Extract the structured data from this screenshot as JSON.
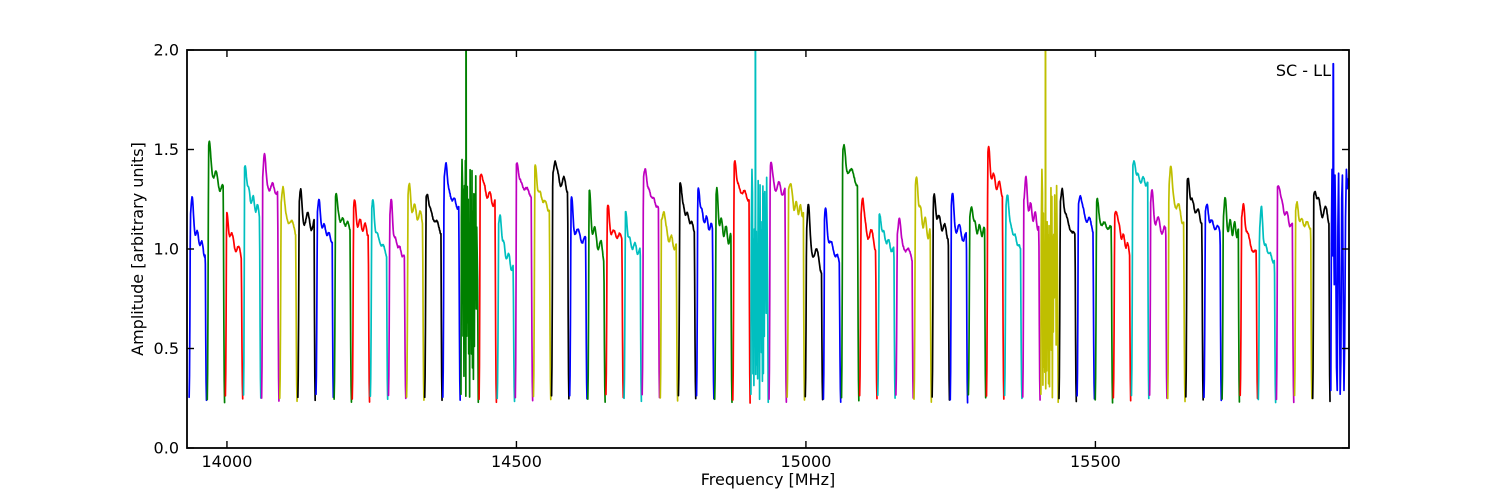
{
  "chart_data": {
    "type": "line",
    "title": "",
    "annotation": "SC - LL",
    "xlabel": "Frequency [MHz]",
    "ylabel": "Amplitude [arbitrary units]",
    "xlim": [
      13931,
      15938
    ],
    "ylim": [
      0.0,
      2.0
    ],
    "xticks": [
      14000,
      14500,
      15000,
      15500
    ],
    "xtick_labels": [
      "14000",
      "14500",
      "15000",
      "15500"
    ],
    "yticks": [
      0.0,
      0.5,
      1.0,
      1.5,
      2.0
    ],
    "ytick_labels": [
      "0.0",
      "0.5",
      "1.0",
      "1.5",
      "2.0"
    ],
    "grid": false,
    "legend": "none",
    "background": "#ffffff",
    "axis_color": "#000000",
    "color_cycle": {
      "b": "#0000ff",
      "g": "#008000",
      "r": "#ff0000",
      "c": "#00bfbf",
      "m": "#bf00bf",
      "y": "#bfbf00",
      "k": "#000000"
    },
    "baseline_amplitude": 0.24,
    "subband_width_mhz": 31.3,
    "n_subbands": 64,
    "subbands": [
      {
        "f0": 13934.0,
        "color": "b",
        "peak": 1.27,
        "flagged": false
      },
      {
        "f0": 13965.3,
        "color": "g",
        "peak": 1.52,
        "flagged": false
      },
      {
        "f0": 13996.6,
        "color": "r",
        "peak": 1.19,
        "flagged": false
      },
      {
        "f0": 14027.9,
        "color": "c",
        "peak": 1.43,
        "flagged": false
      },
      {
        "f0": 14059.2,
        "color": "m",
        "peak": 1.48,
        "flagged": false
      },
      {
        "f0": 14090.5,
        "color": "y",
        "peak": 1.31,
        "flagged": false
      },
      {
        "f0": 14121.8,
        "color": "k",
        "peak": 1.27,
        "flagged": false
      },
      {
        "f0": 14153.1,
        "color": "b",
        "peak": 1.25,
        "flagged": false
      },
      {
        "f0": 14184.4,
        "color": "g",
        "peak": 1.29,
        "flagged": false
      },
      {
        "f0": 14215.7,
        "color": "r",
        "peak": 1.23,
        "flagged": false
      },
      {
        "f0": 14247.0,
        "color": "c",
        "peak": 1.26,
        "flagged": false
      },
      {
        "f0": 14278.3,
        "color": "m",
        "peak": 1.26,
        "flagged": false
      },
      {
        "f0": 14309.6,
        "color": "y",
        "peak": 1.31,
        "flagged": false
      },
      {
        "f0": 14340.9,
        "color": "k",
        "peak": 1.3,
        "flagged": false
      },
      {
        "f0": 14372.2,
        "color": "b",
        "peak": 1.46,
        "flagged": false
      },
      {
        "f0": 14403.5,
        "color": "g",
        "peak": 1.45,
        "flagged": true
      },
      {
        "f0": 14434.8,
        "color": "r",
        "peak": 1.41,
        "flagged": false
      },
      {
        "f0": 14466.1,
        "color": "c",
        "peak": 1.2,
        "flagged": false
      },
      {
        "f0": 14497.4,
        "color": "m",
        "peak": 1.45,
        "flagged": false
      },
      {
        "f0": 14528.7,
        "color": "y",
        "peak": 1.42,
        "flagged": false
      },
      {
        "f0": 14560.0,
        "color": "k",
        "peak": 1.47,
        "flagged": false
      },
      {
        "f0": 14591.3,
        "color": "b",
        "peak": 1.25,
        "flagged": false
      },
      {
        "f0": 14622.6,
        "color": "g",
        "peak": 1.28,
        "flagged": false
      },
      {
        "f0": 14653.9,
        "color": "r",
        "peak": 1.21,
        "flagged": false
      },
      {
        "f0": 14685.2,
        "color": "c",
        "peak": 1.2,
        "flagged": false
      },
      {
        "f0": 14716.5,
        "color": "m",
        "peak": 1.42,
        "flagged": false
      },
      {
        "f0": 14747.8,
        "color": "y",
        "peak": 1.23,
        "flagged": false
      },
      {
        "f0": 14779.1,
        "color": "k",
        "peak": 1.35,
        "flagged": false
      },
      {
        "f0": 14810.4,
        "color": "b",
        "peak": 1.32,
        "flagged": false
      },
      {
        "f0": 14841.7,
        "color": "g",
        "peak": 1.28,
        "flagged": false
      },
      {
        "f0": 14873.0,
        "color": "r",
        "peak": 1.46,
        "flagged": false
      },
      {
        "f0": 14904.3,
        "color": "c",
        "peak": 1.4,
        "flagged": true
      },
      {
        "f0": 14935.6,
        "color": "m",
        "peak": 1.43,
        "flagged": false
      },
      {
        "f0": 14966.9,
        "color": "y",
        "peak": 1.36,
        "flagged": false
      },
      {
        "f0": 14998.2,
        "color": "k",
        "peak": 1.21,
        "flagged": false
      },
      {
        "f0": 15029.5,
        "color": "b",
        "peak": 1.2,
        "flagged": false
      },
      {
        "f0": 15060.8,
        "color": "g",
        "peak": 1.52,
        "flagged": false
      },
      {
        "f0": 15092.1,
        "color": "r",
        "peak": 1.27,
        "flagged": false
      },
      {
        "f0": 15123.4,
        "color": "c",
        "peak": 1.18,
        "flagged": false
      },
      {
        "f0": 15154.7,
        "color": "m",
        "peak": 1.16,
        "flagged": false
      },
      {
        "f0": 15186.0,
        "color": "y",
        "peak": 1.38,
        "flagged": false
      },
      {
        "f0": 15217.3,
        "color": "k",
        "peak": 1.27,
        "flagged": false
      },
      {
        "f0": 15248.6,
        "color": "b",
        "peak": 1.26,
        "flagged": false
      },
      {
        "f0": 15279.9,
        "color": "g",
        "peak": 1.23,
        "flagged": false
      },
      {
        "f0": 15311.2,
        "color": "r",
        "peak": 1.5,
        "flagged": false
      },
      {
        "f0": 15342.5,
        "color": "c",
        "peak": 1.3,
        "flagged": false
      },
      {
        "f0": 15373.8,
        "color": "m",
        "peak": 1.35,
        "flagged": false
      },
      {
        "f0": 15405.1,
        "color": "y",
        "peak": 1.4,
        "flagged": true
      },
      {
        "f0": 15436.4,
        "color": "k",
        "peak": 1.34,
        "flagged": false
      },
      {
        "f0": 15467.7,
        "color": "b",
        "peak": 1.3,
        "flagged": false
      },
      {
        "f0": 15499.0,
        "color": "g",
        "peak": 1.25,
        "flagged": false
      },
      {
        "f0": 15530.3,
        "color": "r",
        "peak": 1.22,
        "flagged": false
      },
      {
        "f0": 15561.6,
        "color": "c",
        "peak": 1.45,
        "flagged": false
      },
      {
        "f0": 15592.9,
        "color": "m",
        "peak": 1.28,
        "flagged": false
      },
      {
        "f0": 15624.2,
        "color": "y",
        "peak": 1.43,
        "flagged": false
      },
      {
        "f0": 15655.5,
        "color": "k",
        "peak": 1.37,
        "flagged": false
      },
      {
        "f0": 15686.8,
        "color": "b",
        "peak": 1.23,
        "flagged": false
      },
      {
        "f0": 15718.1,
        "color": "g",
        "peak": 1.25,
        "flagged": false
      },
      {
        "f0": 15749.4,
        "color": "r",
        "peak": 1.27,
        "flagged": false
      },
      {
        "f0": 15780.7,
        "color": "c",
        "peak": 1.22,
        "flagged": false
      },
      {
        "f0": 15812.0,
        "color": "m",
        "peak": 1.35,
        "flagged": false
      },
      {
        "f0": 15843.3,
        "color": "y",
        "peak": 1.23,
        "flagged": false
      },
      {
        "f0": 15874.6,
        "color": "k",
        "peak": 1.33,
        "flagged": false
      },
      {
        "f0": 15905.9,
        "color": "b",
        "peak": 1.4,
        "flagged": true
      }
    ]
  }
}
